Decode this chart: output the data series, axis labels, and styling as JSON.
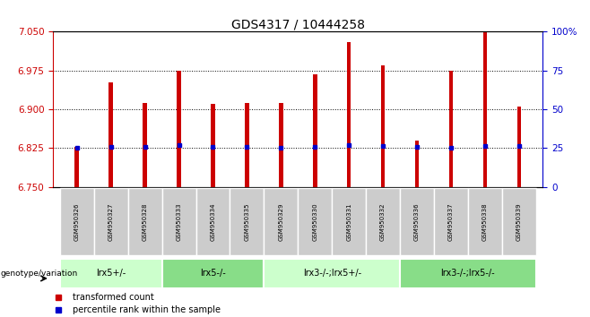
{
  "title": "GDS4317 / 10444258",
  "samples": [
    "GSM950326",
    "GSM950327",
    "GSM950328",
    "GSM950333",
    "GSM950334",
    "GSM950335",
    "GSM950329",
    "GSM950330",
    "GSM950331",
    "GSM950332",
    "GSM950336",
    "GSM950337",
    "GSM950338",
    "GSM950339"
  ],
  "red_values": [
    6.828,
    6.952,
    6.913,
    6.975,
    6.91,
    6.913,
    6.912,
    6.968,
    7.03,
    6.985,
    6.84,
    6.975,
    7.05,
    6.905
  ],
  "blue_values": [
    6.826,
    6.827,
    6.828,
    6.831,
    6.828,
    6.828,
    6.826,
    6.828,
    6.831,
    6.829,
    6.828,
    6.826,
    6.829,
    6.829
  ],
  "ylim_left": [
    6.75,
    7.05
  ],
  "ylim_right": [
    0,
    100
  ],
  "yticks_left": [
    6.75,
    6.825,
    6.9,
    6.975,
    7.05
  ],
  "yticks_right": [
    0,
    25,
    50,
    75,
    100
  ],
  "hlines": [
    6.825,
    6.9,
    6.975
  ],
  "groups": [
    {
      "label": "lrx5+/-",
      "start": 0,
      "end": 3,
      "color": "#ccffcc"
    },
    {
      "label": "lrx5-/-",
      "start": 3,
      "end": 6,
      "color": "#88dd88"
    },
    {
      "label": "lrx3-/-;lrx5+/-",
      "start": 6,
      "end": 10,
      "color": "#ccffcc"
    },
    {
      "label": "lrx3-/-;lrx5-/-",
      "start": 10,
      "end": 14,
      "color": "#88dd88"
    }
  ],
  "bar_color": "#cc0000",
  "blue_color": "#0000cc",
  "bg_color": "#ffffff",
  "bar_width": 0.12,
  "title_fontsize": 10,
  "axis_label_color_left": "#cc0000",
  "axis_label_color_right": "#0000cc",
  "sample_box_color": "#cccccc",
  "group_border_color": "#ffffff",
  "legend_red_label": "transformed count",
  "legend_blue_label": "percentile rank within the sample",
  "genotype_label": "genotype/variation"
}
